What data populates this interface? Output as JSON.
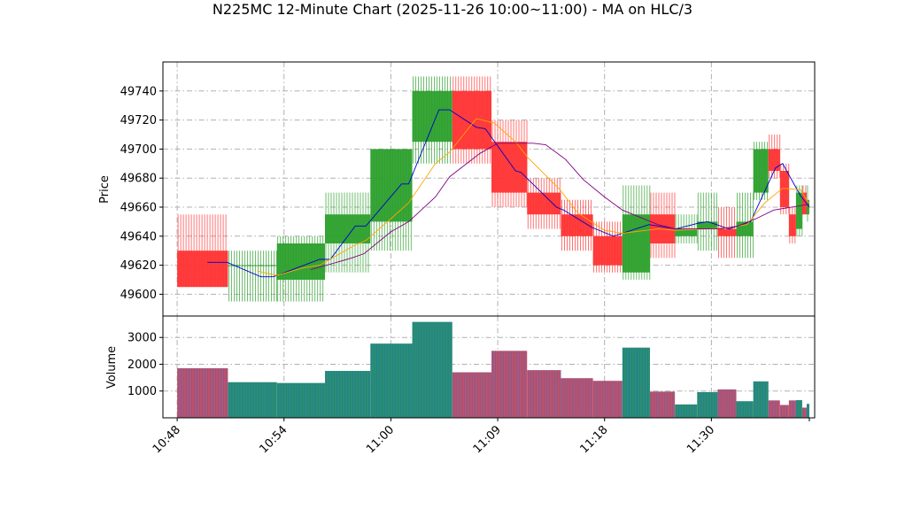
{
  "chart_data": {
    "type": "candlestick",
    "title": "N225MC 12-Minute Chart (2025-11-26 10:00~11:00) - MA on HLC/3",
    "price_panel": {
      "ylabel": "Price",
      "ylim": [
        49585,
        49760
      ],
      "yticks": [
        49600,
        49620,
        49640,
        49660,
        49680,
        49700,
        49720,
        49740
      ]
    },
    "volume_panel": {
      "ylabel": "Volume",
      "ylim": [
        0,
        3800
      ],
      "yticks": [
        1000,
        2000,
        3000
      ],
      "tick_labels": [
        "1000",
        "2000",
        "3000"
      ]
    },
    "xaxis": {
      "tick_labels": [
        "10:48",
        "10:54",
        "11:00",
        "11:09",
        "11:18",
        "11:30"
      ],
      "tick_positions": [
        0,
        6,
        12,
        18,
        24,
        30
      ],
      "xlim": [
        -0.8,
        35.8
      ]
    },
    "colors": {
      "up": "#2ca02c",
      "down": "#ff3333",
      "ma_fast": "#0000cc",
      "ma_mid": "#ffa500",
      "ma_slow": "#800080",
      "volume_up": "#2a8f6f",
      "volume_down": "#c0506a"
    },
    "candles": [
      {
        "x": 0.0,
        "w": 2.85,
        "open": 49630,
        "high": 49655,
        "low": 49605,
        "close": 49605,
        "volume": 1850
      },
      {
        "x": 2.85,
        "w": 2.75,
        "open": 49620,
        "high": 49630,
        "low": 49595,
        "close": 49620,
        "volume": 1330
      },
      {
        "x": 5.6,
        "w": 2.7,
        "open": 49610,
        "high": 49640,
        "low": 49595,
        "close": 49635,
        "volume": 1300
      },
      {
        "x": 8.3,
        "w": 2.55,
        "open": 49635,
        "high": 49670,
        "low": 49615,
        "close": 49655,
        "volume": 1750
      },
      {
        "x": 10.85,
        "w": 2.35,
        "open": 49650,
        "high": 49700,
        "low": 49630,
        "close": 49700,
        "volume": 2770
      },
      {
        "x": 13.2,
        "w": 2.25,
        "open": 49705,
        "high": 49750,
        "low": 49690,
        "close": 49740,
        "volume": 3580
      },
      {
        "x": 15.45,
        "w": 2.2,
        "open": 49740,
        "high": 49750,
        "low": 49690,
        "close": 49700,
        "volume": 1700
      },
      {
        "x": 17.65,
        "w": 2.0,
        "open": 49705,
        "high": 49720,
        "low": 49660,
        "close": 49670,
        "volume": 2500
      },
      {
        "x": 19.65,
        "w": 1.9,
        "open": 49670,
        "high": 49680,
        "low": 49645,
        "close": 49655,
        "volume": 1780
      },
      {
        "x": 21.55,
        "w": 1.8,
        "open": 49655,
        "high": 49665,
        "low": 49630,
        "close": 49640,
        "volume": 1480
      },
      {
        "x": 23.35,
        "w": 1.65,
        "open": 49640,
        "high": 49650,
        "low": 49615,
        "close": 49620,
        "volume": 1380
      },
      {
        "x": 25.0,
        "w": 1.55,
        "open": 49615,
        "high": 49675,
        "low": 49610,
        "close": 49655,
        "volume": 2620
      },
      {
        "x": 26.55,
        "w": 1.4,
        "open": 49655,
        "high": 49670,
        "low": 49625,
        "close": 49635,
        "volume": 980
      },
      {
        "x": 27.95,
        "w": 1.25,
        "open": 49640,
        "high": 49655,
        "low": 49635,
        "close": 49645,
        "volume": 500
      },
      {
        "x": 29.2,
        "w": 1.15,
        "open": 49645,
        "high": 49670,
        "low": 49630,
        "close": 49650,
        "volume": 960
      },
      {
        "x": 30.35,
        "w": 1.05,
        "open": 49645,
        "high": 49660,
        "low": 49625,
        "close": 49640,
        "volume": 1060
      },
      {
        "x": 31.4,
        "w": 0.95,
        "open": 49640,
        "high": 49670,
        "low": 49625,
        "close": 49650,
        "volume": 620
      },
      {
        "x": 32.35,
        "w": 0.85,
        "open": 49670,
        "high": 49705,
        "low": 49665,
        "close": 49700,
        "volume": 1360
      },
      {
        "x": 33.2,
        "w": 0.65,
        "open": 49700,
        "high": 49710,
        "low": 49680,
        "close": 49685,
        "volume": 650
      },
      {
        "x": 33.85,
        "w": 0.5,
        "open": 49685,
        "high": 49690,
        "low": 49655,
        "close": 49660,
        "volume": 480
      },
      {
        "x": 34.35,
        "w": 0.4,
        "open": 49655,
        "high": 49660,
        "low": 49635,
        "close": 49640,
        "volume": 650
      },
      {
        "x": 34.75,
        "w": 0.35,
        "open": 49645,
        "high": 49675,
        "low": 49640,
        "close": 49670,
        "volume": 660
      },
      {
        "x": 35.1,
        "w": 0.25,
        "open": 49670,
        "high": 49675,
        "low": 49655,
        "close": 49655,
        "volume": 380
      },
      {
        "x": 35.35,
        "w": 0.15,
        "open": 49655,
        "high": 49675,
        "low": 49650,
        "close": 49665,
        "volume": 520
      }
    ],
    "ma_series": [
      {
        "color_key": "ma_fast",
        "points": [
          [
            1.7,
            49622
          ],
          [
            2.8,
            49622
          ],
          [
            4.7,
            49612
          ],
          [
            5.4,
            49612
          ],
          [
            8.0,
            49624
          ],
          [
            8.6,
            49624
          ],
          [
            10.0,
            49647
          ],
          [
            10.6,
            49647
          ],
          [
            12.6,
            49676
          ],
          [
            13.0,
            49676
          ],
          [
            14.7,
            49727
          ],
          [
            15.3,
            49727
          ],
          [
            16.8,
            49715
          ],
          [
            17.3,
            49714
          ],
          [
            19.0,
            49685
          ],
          [
            19.3,
            49684
          ],
          [
            21.3,
            49660
          ],
          [
            21.7,
            49658
          ],
          [
            23.3,
            49646
          ],
          [
            24.5,
            49640
          ],
          [
            26.5,
            49648
          ],
          [
            28.0,
            49645
          ],
          [
            29.3,
            49649
          ],
          [
            29.8,
            49650
          ],
          [
            31.0,
            49645
          ],
          [
            32.2,
            49650
          ],
          [
            33.6,
            49687
          ],
          [
            34.0,
            49690
          ],
          [
            35.0,
            49668
          ],
          [
            35.5,
            49660
          ]
        ]
      },
      {
        "color_key": "ma_mid",
        "points": [
          [
            4.5,
            49616
          ],
          [
            5.6,
            49613
          ],
          [
            7.0,
            49618
          ],
          [
            8.0,
            49620
          ],
          [
            10.0,
            49634
          ],
          [
            10.6,
            49637
          ],
          [
            12.0,
            49652
          ],
          [
            13.0,
            49663
          ],
          [
            14.5,
            49690
          ],
          [
            15.3,
            49698
          ],
          [
            16.8,
            49721
          ],
          [
            17.8,
            49718
          ],
          [
            19.0,
            49705
          ],
          [
            19.7,
            49694
          ],
          [
            21.5,
            49672
          ],
          [
            22.5,
            49656
          ],
          [
            24.0,
            49644
          ],
          [
            25.0,
            49642
          ],
          [
            27.0,
            49645
          ],
          [
            28.0,
            49644
          ],
          [
            29.8,
            49645
          ],
          [
            31.0,
            49646
          ],
          [
            32.0,
            49648
          ],
          [
            33.0,
            49663
          ],
          [
            34.0,
            49673
          ],
          [
            35.0,
            49672
          ],
          [
            35.5,
            49662
          ]
        ]
      },
      {
        "color_key": "ma_slow",
        "points": [
          [
            7.5,
            49617
          ],
          [
            8.4,
            49620
          ],
          [
            9.8,
            49625
          ],
          [
            10.5,
            49628
          ],
          [
            12.0,
            49643
          ],
          [
            13.0,
            49650
          ],
          [
            14.5,
            49667
          ],
          [
            15.3,
            49681
          ],
          [
            17.0,
            49697
          ],
          [
            18.0,
            49704
          ],
          [
            20.0,
            49704
          ],
          [
            20.7,
            49703
          ],
          [
            21.8,
            49693
          ],
          [
            22.8,
            49679
          ],
          [
            24.0,
            49667
          ],
          [
            25.0,
            49658
          ],
          [
            27.0,
            49648
          ],
          [
            28.0,
            49645
          ],
          [
            29.5,
            49645
          ],
          [
            30.5,
            49645
          ],
          [
            31.5,
            49647
          ],
          [
            32.5,
            49652
          ],
          [
            33.5,
            49658
          ],
          [
            35.5,
            49662
          ]
        ]
      }
    ]
  }
}
